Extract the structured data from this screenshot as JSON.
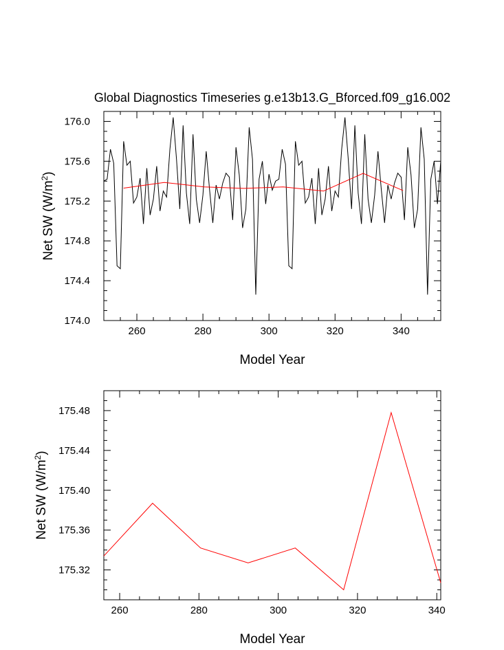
{
  "title": "Global Diagnostics Timeseries g.e13b13.G_Bforced.f09_g16.002",
  "chart_data": [
    {
      "type": "line",
      "xlabel": "Model Year",
      "ylabel": "Net SW (W/m",
      "ylabel_sup": "2",
      "ylabel_close": ")",
      "xlim": [
        250,
        352
      ],
      "ylim": [
        174.0,
        176.1
      ],
      "xticks": [
        260,
        280,
        300,
        320,
        340
      ],
      "xtick_labels": [
        "260",
        "280",
        "300",
        "320",
        "340"
      ],
      "yticks": [
        174.0,
        174.4,
        174.8,
        175.2,
        175.6,
        176.0
      ],
      "ytick_labels": [
        "174.0",
        "174.4",
        "174.8",
        "175.2",
        "175.6",
        "176.0"
      ],
      "series": [
        {
          "color": "#000000",
          "x": [
            250,
            251,
            252,
            253,
            254,
            255,
            256,
            257,
            258,
            259,
            260,
            261,
            262,
            263,
            264,
            265,
            266,
            267,
            268,
            269,
            270,
            271,
            272,
            273,
            274,
            275,
            276,
            277,
            278,
            279,
            280,
            281,
            282,
            283,
            284,
            285,
            286,
            287,
            288,
            289,
            290,
            291,
            292,
            293,
            294,
            295,
            296,
            297,
            298,
            299,
            300,
            301,
            302,
            303,
            304,
            305,
            306,
            307,
            308,
            309,
            310,
            311,
            312,
            313,
            314,
            315,
            316,
            317,
            318,
            319,
            320,
            321,
            322,
            323,
            324,
            325,
            326,
            327,
            328,
            329,
            330,
            331,
            332,
            333,
            334,
            335,
            336,
            337,
            338,
            339,
            340,
            341,
            342,
            343,
            344,
            345,
            346,
            347,
            348,
            349,
            350,
            351,
            352
          ],
          "values": [
            175.4,
            175.42,
            175.72,
            175.58,
            174.55,
            174.52,
            175.8,
            175.56,
            175.6,
            175.18,
            175.24,
            175.43,
            174.97,
            175.53,
            175.06,
            175.22,
            175.55,
            175.1,
            175.3,
            175.24,
            175.72,
            176.04,
            175.62,
            175.12,
            175.96,
            175.28,
            174.97,
            175.87,
            175.22,
            174.98,
            175.26,
            175.7,
            175.32,
            174.98,
            175.36,
            175.22,
            175.38,
            175.48,
            175.44,
            175.01,
            175.74,
            175.46,
            174.93,
            175.12,
            175.94,
            175.62,
            174.26,
            175.42,
            175.6,
            175.17,
            175.47,
            175.31,
            175.4,
            175.42,
            175.72,
            175.57,
            174.55,
            174.52,
            175.8,
            175.56,
            175.6,
            175.18,
            175.24,
            175.43,
            174.97,
            175.53,
            175.06,
            175.22,
            175.55,
            175.1,
            175.3,
            175.24,
            175.72,
            176.04,
            175.62,
            175.12,
            175.96,
            175.28,
            174.97,
            175.87,
            175.22,
            174.98,
            175.26,
            175.7,
            175.32,
            174.98,
            175.36,
            175.22,
            175.38,
            175.48,
            175.44,
            175.01,
            175.74,
            175.46,
            174.93,
            175.12,
            175.94,
            175.62,
            174.26,
            175.42,
            175.6,
            175.17,
            175.6
          ]
        },
        {
          "color": "#ff0000",
          "x": [
            256,
            268.3,
            280.4,
            292.4,
            304.3,
            316.5,
            328.5,
            340.6
          ],
          "values": [
            175.33,
            175.387,
            175.342,
            175.327,
            175.342,
            175.3,
            175.478,
            175.305
          ]
        }
      ]
    },
    {
      "type": "line",
      "xlabel": "Model Year",
      "ylabel": "Net SW (W/m",
      "ylabel_sup": "2",
      "ylabel_close": ")",
      "xlim": [
        256,
        341
      ],
      "ylim": [
        175.29,
        175.5
      ],
      "xticks": [
        260,
        280,
        300,
        320,
        340
      ],
      "xtick_labels": [
        "260",
        "280",
        "300",
        "320",
        "340"
      ],
      "yticks": [
        175.32,
        175.36,
        175.4,
        175.44,
        175.48
      ],
      "ytick_labels": [
        "175.32",
        "175.36",
        "175.40",
        "175.44",
        "175.48"
      ],
      "series": [
        {
          "color": "#ff0000",
          "x": [
            256,
            268.3,
            280.4,
            292.4,
            304.3,
            316.5,
            328.5,
            341
          ],
          "values": [
            175.334,
            175.387,
            175.342,
            175.327,
            175.342,
            175.3,
            175.478,
            175.307
          ]
        }
      ]
    }
  ]
}
